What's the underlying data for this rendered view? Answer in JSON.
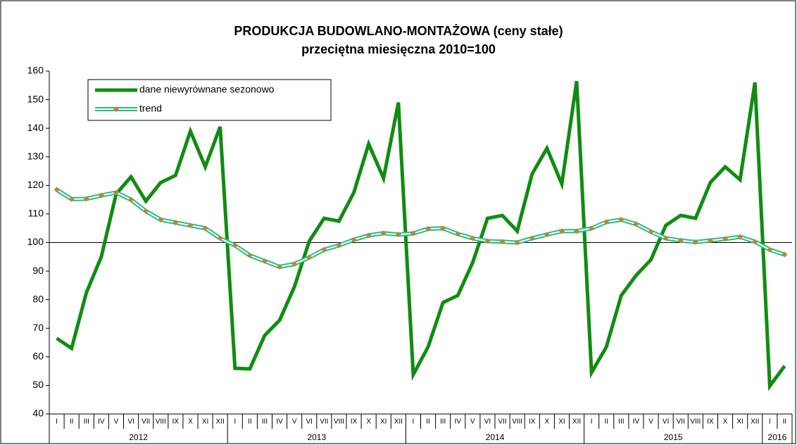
{
  "chart_data": {
    "type": "line",
    "title": "PRODUKCJA BUDOWLANO-MONTAŻOWA (ceny stałe)",
    "subtitle": "przeciętna miesięczna 2010=100",
    "categories": [
      "I",
      "II",
      "III",
      "IV",
      "V",
      "VI",
      "VII",
      "VIII",
      "IX",
      "X",
      "XI",
      "XII",
      "I",
      "II",
      "III",
      "IV",
      "V",
      "VI",
      "VII",
      "VIII",
      "IX",
      "X",
      "XI",
      "XII",
      "I",
      "II",
      "III",
      "IV",
      "V",
      "VI",
      "VII",
      "VIII",
      "IX",
      "X",
      "XI",
      "XII",
      "I",
      "II",
      "III",
      "IV",
      "V",
      "VI",
      "VII",
      "VIII",
      "IX",
      "X",
      "XI",
      "XII",
      "I",
      "II"
    ],
    "years": [
      "2012",
      "2013",
      "2014",
      "2015",
      "2016"
    ],
    "series": [
      {
        "name": "dane niewyrównane sezonowo",
        "color": "#118c11",
        "values": [
          66.5,
          63,
          82.5,
          95,
          117,
          123,
          114.5,
          121,
          123.5,
          139,
          126.5,
          140.5,
          56,
          55.8,
          67.5,
          72.8,
          84.5,
          100.5,
          108.5,
          107.5,
          117.5,
          134.5,
          122.5,
          149,
          53.8,
          63.5,
          79,
          81.5,
          93,
          108.5,
          109.5,
          104,
          124,
          133,
          120.5,
          156.5,
          54.5,
          63.5,
          81.5,
          88.5,
          94,
          106,
          109.5,
          108.5,
          121,
          126.5,
          122,
          156,
          49.8,
          56.8
        ]
      },
      {
        "name": "trend",
        "color": "#2dba7e",
        "marker_color": "#b8863b",
        "values": [
          118.5,
          115.2,
          115.3,
          116.5,
          117.5,
          115,
          111,
          108,
          107,
          106,
          105,
          101.5,
          99,
          95.5,
          93.5,
          91.5,
          92.5,
          94.8,
          97.5,
          99,
          101,
          102.5,
          103.3,
          102.8,
          103.2,
          104.8,
          105,
          103,
          101.5,
          100.5,
          100.3,
          100,
          101.5,
          102.8,
          104,
          104,
          105,
          107.2,
          108,
          106.5,
          103.8,
          101.5,
          100.7,
          100.2,
          100.7,
          101.3,
          102,
          100.3,
          97.5,
          95.8
        ]
      }
    ],
    "ylim": [
      40,
      160
    ],
    "yticks": [
      40,
      50,
      60,
      70,
      80,
      90,
      100,
      110,
      120,
      130,
      140,
      150,
      160
    ],
    "x_axis_crosses": 100,
    "grid": false,
    "legend": "top-left"
  }
}
